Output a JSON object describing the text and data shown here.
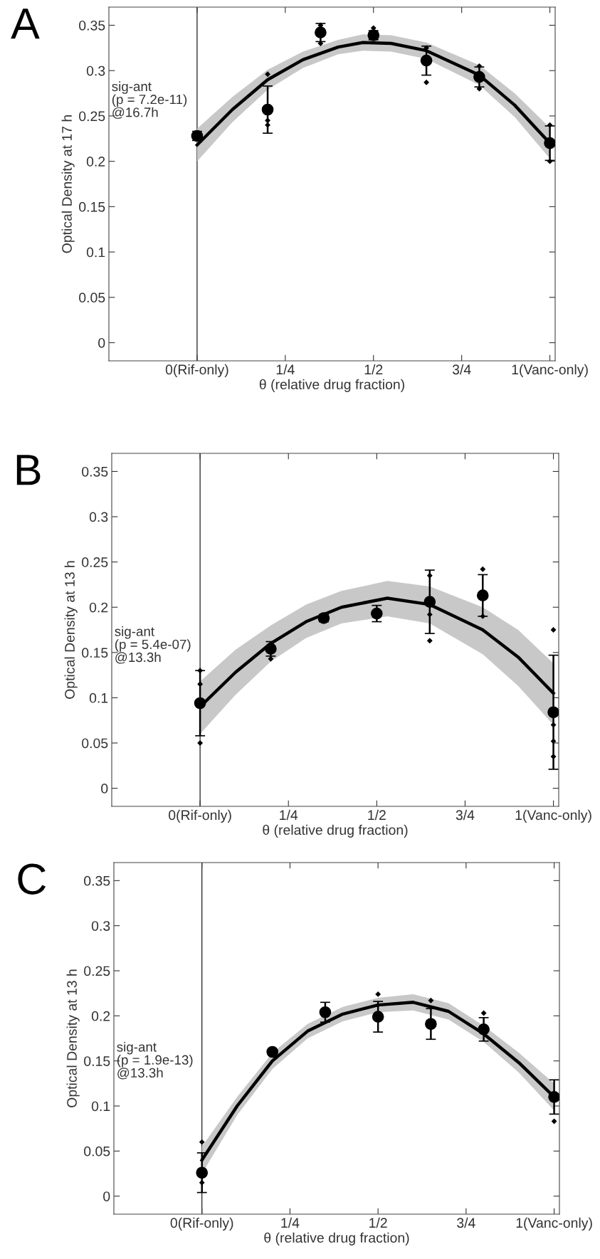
{
  "chart_data": [
    {
      "type": "scatter",
      "title": "A",
      "xlabel": "θ (relative drug fraction)",
      "ylabel": "Optical Density at 17 h",
      "annotations": [
        "sig-ant\n(p = 7.2e-11)\n@16.7h"
      ],
      "x": [
        0,
        0.2,
        0.35,
        0.5,
        0.65,
        0.8,
        1
      ],
      "xlim": [
        -0.25,
        1.015
      ],
      "ylim": [
        -0.02,
        0.37
      ],
      "xticks": [
        {
          "value": 0,
          "label": "0(Rif-only)"
        },
        {
          "value": 0.25,
          "label": "1/4"
        },
        {
          "value": 0.5,
          "label": "1/2"
        },
        {
          "value": 0.75,
          "label": "3/4"
        },
        {
          "value": 1,
          "label": "1(Vanc-only)"
        }
      ],
      "yticks": [
        0,
        0.05,
        0.1,
        0.15,
        0.2,
        0.25,
        0.3,
        0.35
      ],
      "ref_lines": [
        {
          "axis": "x",
          "value": 0,
          "color": "#000000"
        }
      ],
      "grid": false,
      "series": [
        {
          "type": "line",
          "color": "#000000",
          "marker": "none",
          "x": [
            0,
            0.1,
            0.2,
            0.3,
            0.4,
            0.47,
            0.55,
            0.65,
            0.8,
            0.9,
            1
          ],
          "values": [
            0.218,
            0.257,
            0.29,
            0.312,
            0.326,
            0.331,
            0.33,
            0.322,
            0.295,
            0.262,
            0.22
          ],
          "lower": [
            0.2,
            0.243,
            0.279,
            0.303,
            0.318,
            0.322,
            0.321,
            0.313,
            0.284,
            0.249,
            0.203
          ],
          "upper": [
            0.236,
            0.271,
            0.301,
            0.321,
            0.334,
            0.34,
            0.339,
            0.331,
            0.306,
            0.275,
            0.237
          ]
        },
        {
          "color": "#000000",
          "marker": "diamond",
          "x": [
            0.2,
            0.2,
            0.2,
            0.35,
            0.35,
            0.5,
            0.65,
            0.65,
            0.8,
            0.8,
            1,
            1
          ],
          "values": [
            0.296,
            0.24,
            0.245,
            0.35,
            0.33,
            0.347,
            0.287,
            0.325,
            0.305,
            0.28,
            0.24,
            0.2
          ]
        },
        {
          "color": "#000000",
          "marker": "circle",
          "values": [
            0.228,
            0.257,
            0.342,
            0.339,
            0.311,
            0.293,
            0.22
          ],
          "errors": [
            0.005,
            0.026,
            0.01,
            0.005,
            0.016,
            0.011,
            0.019
          ]
        }
      ]
    },
    {
      "type": "scatter",
      "title": "B",
      "xlabel": "θ (relative drug fraction)",
      "ylabel": "Optical Density at 13 h",
      "annotations": [
        "sig-ant\n(p = 5.4e-07)\n@13.3h"
      ],
      "x": [
        0,
        0.2,
        0.35,
        0.5,
        0.65,
        0.8,
        1
      ],
      "xlim": [
        -0.25,
        1.015
      ],
      "ylim": [
        -0.02,
        0.37
      ],
      "xticks": [
        {
          "value": 0,
          "label": "0(Rif-only)"
        },
        {
          "value": 0.25,
          "label": "1/4"
        },
        {
          "value": 0.5,
          "label": "1/2"
        },
        {
          "value": 0.75,
          "label": "3/4"
        },
        {
          "value": 1,
          "label": "1(Vanc-only)"
        }
      ],
      "yticks": [
        0,
        0.05,
        0.1,
        0.15,
        0.2,
        0.25,
        0.3,
        0.35
      ],
      "ref_lines": [
        {
          "axis": "x",
          "value": 0,
          "color": "#000000"
        }
      ],
      "grid": false,
      "series": [
        {
          "type": "line",
          "color": "#000000",
          "marker": "none",
          "x": [
            0,
            0.1,
            0.2,
            0.3,
            0.4,
            0.53,
            0.65,
            0.8,
            0.9,
            1
          ],
          "values": [
            0.09,
            0.128,
            0.16,
            0.184,
            0.2,
            0.21,
            0.203,
            0.175,
            0.145,
            0.105
          ],
          "lower": [
            0.06,
            0.103,
            0.14,
            0.166,
            0.182,
            0.19,
            0.182,
            0.148,
            0.113,
            0.07
          ],
          "upper": [
            0.118,
            0.153,
            0.18,
            0.203,
            0.218,
            0.229,
            0.223,
            0.2,
            0.175,
            0.138
          ]
        },
        {
          "color": "#000000",
          "marker": "diamond",
          "x": [
            0,
            0,
            0,
            0.2,
            0.65,
            0.65,
            0.65,
            0.8,
            0.8,
            1,
            1,
            1,
            1
          ],
          "values": [
            0.05,
            0.115,
            0.13,
            0.143,
            0.163,
            0.192,
            0.235,
            0.242,
            0.19,
            0.175,
            0.035,
            0.052,
            0.07
          ]
        },
        {
          "color": "#000000",
          "marker": "circle",
          "values": [
            0.094,
            0.154,
            0.188,
            0.193,
            0.206,
            0.213,
            0.084
          ],
          "errors": [
            0.036,
            0.008,
            0.004,
            0.009,
            0.035,
            0.023,
            0.063
          ]
        }
      ]
    },
    {
      "type": "scatter",
      "title": "C",
      "xlabel": "θ (relative drug fraction)",
      "ylabel": "Optical Density at 13 h",
      "annotations": [
        "sig-ant\n(p = 1.9e-13)\n@13.3h"
      ],
      "x": [
        0,
        0.2,
        0.35,
        0.5,
        0.65,
        0.8,
        1
      ],
      "xlim": [
        -0.25,
        1.015
      ],
      "ylim": [
        -0.02,
        0.37
      ],
      "xticks": [
        {
          "value": 0,
          "label": "0(Rif-only)"
        },
        {
          "value": 0.25,
          "label": "1/4"
        },
        {
          "value": 0.5,
          "label": "1/2"
        },
        {
          "value": 0.75,
          "label": "3/4"
        },
        {
          "value": 1,
          "label": "1(Vanc-only)"
        }
      ],
      "yticks": [
        0,
        0.05,
        0.1,
        0.15,
        0.2,
        0.25,
        0.3,
        0.35
      ],
      "ref_lines": [
        {
          "axis": "x",
          "value": 0,
          "color": "#000000"
        }
      ],
      "grid": false,
      "series": [
        {
          "type": "line",
          "color": "#000000",
          "marker": "none",
          "x": [
            0,
            0.1,
            0.2,
            0.3,
            0.4,
            0.5,
            0.6,
            0.7,
            0.8,
            0.9,
            1
          ],
          "values": [
            0.04,
            0.1,
            0.15,
            0.183,
            0.202,
            0.212,
            0.215,
            0.205,
            0.18,
            0.148,
            0.11
          ],
          "lower": [
            0.025,
            0.09,
            0.141,
            0.175,
            0.194,
            0.204,
            0.206,
            0.196,
            0.171,
            0.137,
            0.095
          ],
          "upper": [
            0.055,
            0.11,
            0.159,
            0.191,
            0.21,
            0.22,
            0.224,
            0.214,
            0.189,
            0.159,
            0.125
          ]
        },
        {
          "color": "#000000",
          "marker": "diamond",
          "x": [
            0,
            0,
            0.5,
            0.65,
            0.8,
            1
          ],
          "values": [
            0.06,
            0.015,
            0.224,
            0.217,
            0.203,
            0.083
          ]
        },
        {
          "color": "#000000",
          "marker": "circle",
          "values": [
            0.026,
            0.16,
            0.204,
            0.199,
            0.191,
            0.185,
            0.11
          ],
          "errors": [
            0.022,
            0,
            0.011,
            0.017,
            0.017,
            0.013,
            0.019
          ]
        }
      ]
    }
  ]
}
